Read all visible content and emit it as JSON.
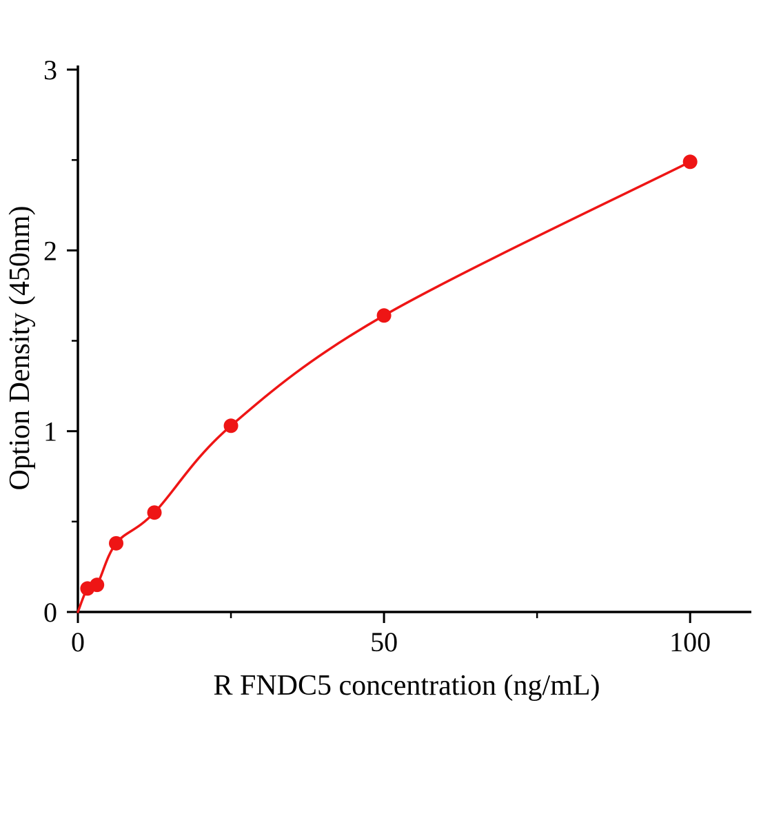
{
  "chart_data": {
    "type": "line",
    "title": "",
    "xlabel": "R FNDC5 concentration (ng/mL)",
    "ylabel": "Option Density (450nm)",
    "x": [
      1.56,
      3.12,
      6.25,
      12.5,
      25,
      50,
      100
    ],
    "y": [
      0.13,
      0.15,
      0.38,
      0.55,
      1.03,
      1.64,
      2.49
    ],
    "curve_start": {
      "x": 0,
      "y": 0
    },
    "x_ticks": [
      0,
      50,
      100
    ],
    "x_minor_ticks": [
      25,
      75
    ],
    "y_ticks": [
      0,
      1,
      2,
      3
    ],
    "y_minor_ticks": [
      0.5,
      1.5,
      2.5
    ],
    "xlim": [
      0,
      110
    ],
    "ylim": [
      0,
      3
    ],
    "grid": "off",
    "legend": "none",
    "marker": "circle",
    "curve_color": "#ee1515",
    "axis_color": "#000000"
  }
}
